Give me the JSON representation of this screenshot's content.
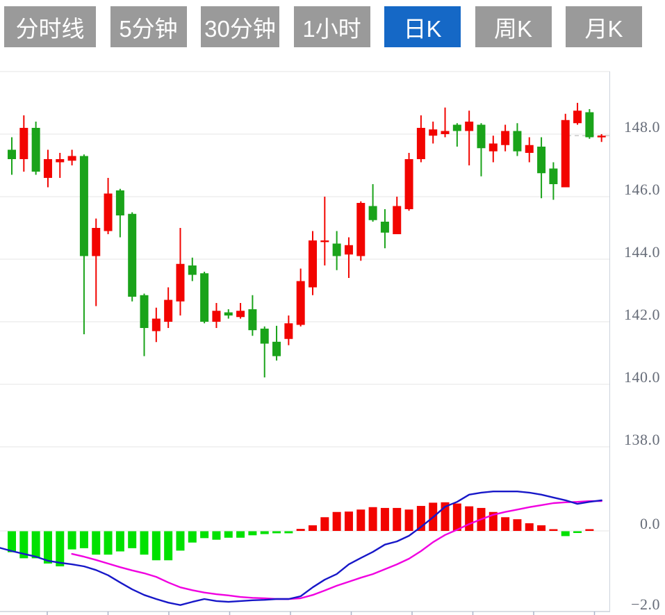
{
  "toolbar": {
    "tabs": [
      {
        "label": "分时线",
        "active": false
      },
      {
        "label": "5分钟",
        "active": false
      },
      {
        "label": "30分钟",
        "active": false
      },
      {
        "label": "1小时",
        "active": false
      },
      {
        "label": "日K",
        "active": true
      },
      {
        "label": "周K",
        "active": false
      },
      {
        "label": "月K",
        "active": false
      }
    ],
    "active_bg": "#1568c6",
    "inactive_bg": "#9a9a9a",
    "text_color": "#ffffff"
  },
  "chart_data": {
    "type": "candlestick_with_macd",
    "title": "",
    "colors": {
      "up": "#f20400",
      "down": "#1aa31a",
      "hist_up": "#f20400",
      "hist_down": "#00e100",
      "dif": "#1717c8",
      "dea": "#f000e0",
      "grid": "#e4e4e4",
      "border": "#ccd2dc",
      "tick": "#aab4c8",
      "axis_text": "#666c78"
    },
    "price_axis": {
      "labels": [
        "148.0",
        "146.0",
        "144.0",
        "142.0",
        "140.0",
        "138.0"
      ],
      "values": [
        148,
        146,
        144,
        142,
        140,
        138
      ],
      "gridline_values": [
        150,
        148,
        146,
        144,
        142,
        140,
        138
      ],
      "range": [
        138,
        150
      ]
    },
    "macd_axis": {
      "labels": [
        "0.0",
        "−2.0"
      ],
      "values": [
        0,
        -2
      ],
      "range": [
        -2,
        2
      ]
    },
    "x_axis_ticks": [
      68,
      155.5,
      243,
      330.5,
      418,
      505.5,
      593,
      680.5,
      768,
      855.5
    ],
    "last_price_dash_value": 147.95,
    "candles": [
      {
        "o": 147.5,
        "h": 147.9,
        "l": 146.7,
        "c": 147.2,
        "dir": "down"
      },
      {
        "o": 147.2,
        "h": 148.6,
        "l": 146.8,
        "c": 148.2,
        "dir": "up"
      },
      {
        "o": 148.2,
        "h": 148.4,
        "l": 146.7,
        "c": 146.8,
        "dir": "down"
      },
      {
        "o": 146.6,
        "h": 147.5,
        "l": 146.3,
        "c": 147.2,
        "dir": "up"
      },
      {
        "o": 147.1,
        "h": 147.4,
        "l": 146.6,
        "c": 147.2,
        "dir": "up"
      },
      {
        "o": 147.15,
        "h": 147.5,
        "l": 147.0,
        "c": 147.3,
        "dir": "up"
      },
      {
        "o": 147.3,
        "h": 147.35,
        "l": 141.6,
        "c": 144.1,
        "dir": "down"
      },
      {
        "o": 144.1,
        "h": 145.3,
        "l": 142.5,
        "c": 145.0,
        "dir": "up"
      },
      {
        "o": 144.9,
        "h": 146.6,
        "l": 144.8,
        "c": 146.1,
        "dir": "up"
      },
      {
        "o": 146.2,
        "h": 146.25,
        "l": 144.7,
        "c": 145.4,
        "dir": "down"
      },
      {
        "o": 145.45,
        "h": 145.5,
        "l": 142.65,
        "c": 142.8,
        "dir": "down"
      },
      {
        "o": 142.85,
        "h": 142.9,
        "l": 140.9,
        "c": 141.8,
        "dir": "down"
      },
      {
        "o": 141.7,
        "h": 142.45,
        "l": 141.35,
        "c": 142.1,
        "dir": "up"
      },
      {
        "o": 142.0,
        "h": 143.1,
        "l": 141.8,
        "c": 142.7,
        "dir": "up"
      },
      {
        "o": 142.65,
        "h": 145.0,
        "l": 142.2,
        "c": 143.85,
        "dir": "up"
      },
      {
        "o": 143.8,
        "h": 144.05,
        "l": 143.3,
        "c": 143.5,
        "dir": "down"
      },
      {
        "o": 143.55,
        "h": 143.6,
        "l": 141.95,
        "c": 142.0,
        "dir": "down"
      },
      {
        "o": 142.0,
        "h": 142.6,
        "l": 141.8,
        "c": 142.35,
        "dir": "up"
      },
      {
        "o": 142.3,
        "h": 142.4,
        "l": 142.1,
        "c": 142.2,
        "dir": "down"
      },
      {
        "o": 142.15,
        "h": 142.6,
        "l": 142.1,
        "c": 142.35,
        "dir": "up"
      },
      {
        "o": 142.4,
        "h": 142.85,
        "l": 141.55,
        "c": 141.73,
        "dir": "down"
      },
      {
        "o": 141.78,
        "h": 141.85,
        "l": 140.22,
        "c": 141.3,
        "dir": "down"
      },
      {
        "o": 141.36,
        "h": 141.87,
        "l": 140.76,
        "c": 140.9,
        "dir": "down"
      },
      {
        "o": 141.45,
        "h": 142.2,
        "l": 141.25,
        "c": 141.95,
        "dir": "up"
      },
      {
        "o": 141.9,
        "h": 143.7,
        "l": 141.85,
        "c": 143.3,
        "dir": "up"
      },
      {
        "o": 143.1,
        "h": 144.9,
        "l": 142.85,
        "c": 144.6,
        "dir": "up"
      },
      {
        "o": 144.6,
        "h": 146.0,
        "l": 143.8,
        "c": 144.6,
        "dir": "up"
      },
      {
        "o": 144.5,
        "h": 144.9,
        "l": 143.65,
        "c": 144.1,
        "dir": "down"
      },
      {
        "o": 144.15,
        "h": 144.7,
        "l": 143.4,
        "c": 144.45,
        "dir": "up"
      },
      {
        "o": 144.1,
        "h": 145.85,
        "l": 143.95,
        "c": 145.8,
        "dir": "up"
      },
      {
        "o": 145.7,
        "h": 146.4,
        "l": 145.2,
        "c": 145.25,
        "dir": "down"
      },
      {
        "o": 145.2,
        "h": 145.6,
        "l": 144.35,
        "c": 144.85,
        "dir": "down"
      },
      {
        "o": 144.8,
        "h": 146.0,
        "l": 144.8,
        "c": 145.7,
        "dir": "up"
      },
      {
        "o": 145.6,
        "h": 147.4,
        "l": 145.55,
        "c": 147.2,
        "dir": "up"
      },
      {
        "o": 147.2,
        "h": 148.6,
        "l": 147.1,
        "c": 148.2,
        "dir": "up"
      },
      {
        "o": 147.95,
        "h": 148.4,
        "l": 147.7,
        "c": 148.15,
        "dir": "up"
      },
      {
        "o": 148.0,
        "h": 148.85,
        "l": 147.9,
        "c": 148.1,
        "dir": "up"
      },
      {
        "o": 148.3,
        "h": 148.35,
        "l": 147.6,
        "c": 148.1,
        "dir": "down"
      },
      {
        "o": 148.1,
        "h": 148.75,
        "l": 147.0,
        "c": 148.4,
        "dir": "up"
      },
      {
        "o": 148.3,
        "h": 148.35,
        "l": 146.65,
        "c": 147.55,
        "dir": "down"
      },
      {
        "o": 147.45,
        "h": 147.95,
        "l": 147.1,
        "c": 147.7,
        "dir": "up"
      },
      {
        "o": 147.65,
        "h": 148.3,
        "l": 147.45,
        "c": 148.1,
        "dir": "up"
      },
      {
        "o": 148.1,
        "h": 148.35,
        "l": 147.3,
        "c": 147.45,
        "dir": "down"
      },
      {
        "o": 147.4,
        "h": 147.9,
        "l": 147.1,
        "c": 147.65,
        "dir": "up"
      },
      {
        "o": 147.6,
        "h": 147.9,
        "l": 145.95,
        "c": 146.75,
        "dir": "down"
      },
      {
        "o": 146.9,
        "h": 147.1,
        "l": 145.9,
        "c": 146.4,
        "dir": "down"
      },
      {
        "o": 146.3,
        "h": 148.65,
        "l": 146.3,
        "c": 148.45,
        "dir": "up"
      },
      {
        "o": 148.35,
        "h": 149.0,
        "l": 148.3,
        "c": 148.75,
        "dir": "up"
      },
      {
        "o": 148.7,
        "h": 148.8,
        "l": 147.85,
        "c": 147.9,
        "dir": "down"
      },
      {
        "o": 147.95,
        "h": 148.0,
        "l": 147.75,
        "c": 147.95,
        "dir": "up"
      }
    ],
    "macd": {
      "histogram": [
        -0.52,
        -0.67,
        -0.67,
        -0.8,
        -0.87,
        -0.45,
        -0.42,
        -0.58,
        -0.58,
        -0.5,
        -0.42,
        -0.58,
        -0.72,
        -0.72,
        -0.48,
        -0.28,
        -0.17,
        -0.21,
        -0.16,
        -0.16,
        -0.1,
        -0.07,
        -0.05,
        -0.05,
        0.05,
        0.14,
        0.34,
        0.47,
        0.48,
        0.53,
        0.59,
        0.57,
        0.57,
        0.53,
        0.62,
        0.7,
        0.71,
        0.68,
        0.61,
        0.57,
        0.47,
        0.34,
        0.29,
        0.19,
        0.14,
        0.04,
        -0.12,
        -0.04,
        0.03,
        0.0
      ],
      "dif_lead_value": -0.42,
      "dif": [
        -0.5,
        -0.57,
        -0.64,
        -0.74,
        -0.79,
        -0.83,
        -0.88,
        -0.97,
        -1.1,
        -1.28,
        -1.45,
        -1.59,
        -1.69,
        -1.78,
        -1.84,
        -1.76,
        -1.69,
        -1.74,
        -1.76,
        -1.74,
        -1.72,
        -1.71,
        -1.69,
        -1.69,
        -1.62,
        -1.4,
        -1.21,
        -1.07,
        -0.83,
        -0.67,
        -0.52,
        -0.34,
        -0.26,
        -0.12,
        0.1,
        0.34,
        0.6,
        0.72,
        0.9,
        0.95,
        0.98,
        0.98,
        0.98,
        0.95,
        0.9,
        0.83,
        0.76,
        0.67,
        0.72,
        0.76
      ],
      "dea": [
        null,
        null,
        null,
        null,
        null,
        -0.57,
        -0.64,
        -0.72,
        -0.81,
        -0.9,
        -0.98,
        -1.05,
        -1.14,
        -1.28,
        -1.4,
        -1.47,
        -1.53,
        -1.57,
        -1.6,
        -1.64,
        -1.66,
        -1.67,
        -1.69,
        -1.69,
        -1.67,
        -1.59,
        -1.48,
        -1.36,
        -1.26,
        -1.16,
        -1.07,
        -0.95,
        -0.83,
        -0.69,
        -0.5,
        -0.28,
        -0.1,
        0.03,
        0.17,
        0.29,
        0.4,
        0.47,
        0.53,
        0.59,
        0.64,
        0.69,
        0.71,
        0.72,
        0.74,
        0.74
      ]
    }
  }
}
